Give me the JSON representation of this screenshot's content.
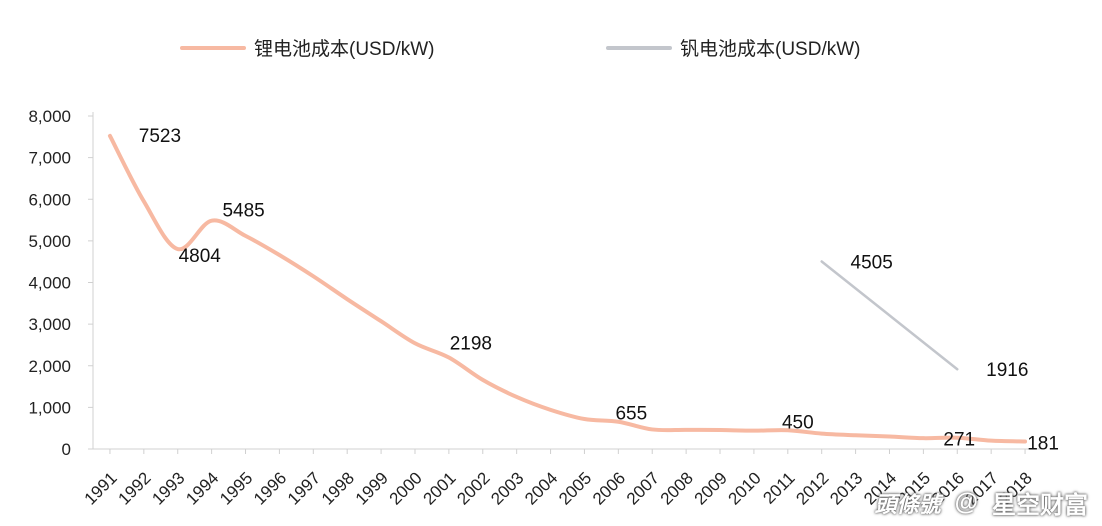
{
  "chart_data": {
    "type": "line",
    "title": "",
    "xlabel": "",
    "ylabel": "",
    "ylim": [
      0,
      8000
    ],
    "yticks": [
      0,
      1000,
      2000,
      3000,
      4000,
      5000,
      6000,
      7000,
      8000
    ],
    "ytick_labels": [
      "0",
      "1,000",
      "2,000",
      "3,000",
      "4,000",
      "5,000",
      "6,000",
      "7,000",
      "8,000"
    ],
    "categories": [
      "1991",
      "1992",
      "1993",
      "1994",
      "1995",
      "1996",
      "1997",
      "1998",
      "1999",
      "2000",
      "2001",
      "2002",
      "2003",
      "2004",
      "2005",
      "2006",
      "2007",
      "2008",
      "2009",
      "2010",
      "2011",
      "2012",
      "2013",
      "2014",
      "2015",
      "2016",
      "2017",
      "2018"
    ],
    "grid": false,
    "legend_position": "top",
    "series": [
      {
        "name": "锂电池成本(USD/kW)",
        "color": "#f7b9a2",
        "values": [
          7523,
          5950,
          4804,
          5485,
          5120,
          4660,
          4150,
          3600,
          3070,
          2540,
          2198,
          1660,
          1250,
          940,
          720,
          655,
          470,
          460,
          455,
          440,
          450,
          370,
          330,
          300,
          260,
          271,
          200,
          181
        ],
        "data_labels": [
          {
            "index": 0,
            "text": "7523"
          },
          {
            "index": 2,
            "text": "4804"
          },
          {
            "index": 3,
            "text": "5485"
          },
          {
            "index": 10,
            "text": "2198"
          },
          {
            "index": 15,
            "text": "655"
          },
          {
            "index": 20,
            "text": "450"
          },
          {
            "index": 25,
            "text": "271"
          },
          {
            "index": 27,
            "text": "181"
          }
        ]
      },
      {
        "name": "钒电池成本(USD/kW)",
        "color": "#c3c6cc",
        "values": [
          null,
          null,
          null,
          null,
          null,
          null,
          null,
          null,
          null,
          null,
          null,
          null,
          null,
          null,
          null,
          null,
          null,
          null,
          null,
          null,
          null,
          4505,
          null,
          null,
          null,
          1916,
          null,
          null
        ],
        "data_labels": [
          {
            "index": 21,
            "text": "4505"
          },
          {
            "index": 25,
            "text": "1916"
          }
        ]
      }
    ]
  },
  "watermark": {
    "logo_text": "頭條號",
    "at_symbol": "@",
    "account": "星空财富"
  }
}
